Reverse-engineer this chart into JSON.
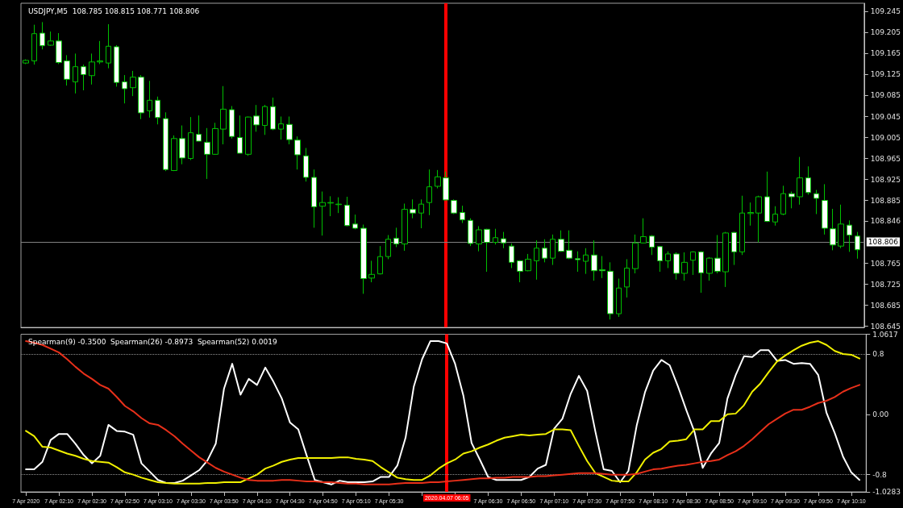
{
  "chart_data": [
    {
      "type": "candlestick",
      "title": "USDJPY,M5  108.785 108.815 108.771 108.806",
      "color": "#00c000",
      "x": [
        "2020-04-07T01:50",
        "2020-04-07T01:55",
        "2020-04-07T02:00",
        "2020-04-07T02:05",
        "2020-04-07T02:10",
        "2020-04-07T02:15",
        "2020-04-07T02:20",
        "2020-04-07T02:25",
        "2020-04-07T02:30",
        "2020-04-07T02:35",
        "2020-04-07T02:40",
        "2020-04-07T02:45",
        "2020-04-07T02:50",
        "2020-04-07T02:55",
        "2020-04-07T03:00",
        "2020-04-07T03:05",
        "2020-04-07T03:10",
        "2020-04-07T03:15",
        "2020-04-07T03:20",
        "2020-04-07T03:25",
        "2020-04-07T03:30",
        "2020-04-07T03:35",
        "2020-04-07T03:40",
        "2020-04-07T03:45",
        "2020-04-07T03:50",
        "2020-04-07T03:55",
        "2020-04-07T04:00",
        "2020-04-07T04:05",
        "2020-04-07T04:10",
        "2020-04-07T04:15",
        "2020-04-07T04:20",
        "2020-04-07T04:25",
        "2020-04-07T04:30",
        "2020-04-07T04:35",
        "2020-04-07T04:40",
        "2020-04-07T04:45",
        "2020-04-07T04:50",
        "2020-04-07T04:55",
        "2020-04-07T05:00",
        "2020-04-07T05:05",
        "2020-04-07T05:10",
        "2020-04-07T05:15",
        "2020-04-07T05:20",
        "2020-04-07T05:25",
        "2020-04-07T05:30",
        "2020-04-07T05:35",
        "2020-04-07T05:40",
        "2020-04-07T05:45",
        "2020-04-07T05:50",
        "2020-04-07T05:55",
        "2020-04-07T06:00",
        "2020-04-07T06:05",
        "2020-04-07T06:10",
        "2020-04-07T06:15",
        "2020-04-07T06:20",
        "2020-04-07T06:25",
        "2020-04-07T06:30",
        "2020-04-07T06:35",
        "2020-04-07T06:40",
        "2020-04-07T06:45",
        "2020-04-07T06:50",
        "2020-04-07T06:55",
        "2020-04-07T07:00",
        "2020-04-07T07:05",
        "2020-04-07T07:10",
        "2020-04-07T07:15",
        "2020-04-07T07:20",
        "2020-04-07T07:25",
        "2020-04-07T07:30",
        "2020-04-07T07:35",
        "2020-04-07T07:40",
        "2020-04-07T07:45",
        "2020-04-07T07:50",
        "2020-04-07T07:55",
        "2020-04-07T08:00",
        "2020-04-07T08:05",
        "2020-04-07T08:10",
        "2020-04-07T08:15",
        "2020-04-07T08:20",
        "2020-04-07T08:25",
        "2020-04-07T08:30",
        "2020-04-07T08:35",
        "2020-04-07T08:40",
        "2020-04-07T08:45",
        "2020-04-07T08:50",
        "2020-04-07T08:55",
        "2020-04-07T09:00",
        "2020-04-07T09:05",
        "2020-04-07T09:10",
        "2020-04-07T09:15",
        "2020-04-07T09:20",
        "2020-04-07T09:25",
        "2020-04-07T09:30",
        "2020-04-07T09:35",
        "2020-04-07T09:40",
        "2020-04-07T09:45",
        "2020-04-07T09:50",
        "2020-04-07T09:55",
        "2020-04-07T10:00",
        "2020-04-07T10:05",
        "2020-04-07T10:10",
        "2020-04-07T10:15"
      ],
      "ohlc": [
        [
          109.147,
          109.154,
          109.145,
          109.152
        ],
        [
          109.151,
          109.22,
          109.144,
          109.203
        ],
        [
          109.204,
          109.225,
          109.173,
          109.18
        ],
        [
          109.181,
          109.207,
          109.18,
          109.189
        ],
        [
          109.189,
          109.204,
          109.145,
          109.148
        ],
        [
          109.151,
          109.162,
          109.104,
          109.116
        ],
        [
          109.111,
          109.165,
          109.089,
          109.14
        ],
        [
          109.14,
          109.144,
          109.095,
          109.125
        ],
        [
          109.123,
          109.165,
          109.106,
          109.149
        ],
        [
          109.149,
          109.189,
          109.145,
          109.151
        ],
        [
          109.147,
          109.221,
          109.137,
          109.179
        ],
        [
          109.178,
          109.181,
          109.102,
          109.11
        ],
        [
          109.111,
          109.124,
          109.07,
          109.098
        ],
        [
          109.1,
          109.132,
          109.084,
          109.12
        ],
        [
          109.12,
          109.124,
          109.04,
          109.052
        ],
        [
          109.056,
          109.113,
          109.043,
          109.076
        ],
        [
          109.076,
          109.083,
          109.03,
          109.043
        ],
        [
          109.041,
          109.053,
          108.941,
          108.944
        ],
        [
          108.942,
          109.009,
          108.941,
          109.003
        ],
        [
          109.003,
          109.028,
          108.954,
          108.966
        ],
        [
          108.965,
          109.044,
          108.962,
          109.014
        ],
        [
          109.011,
          109.047,
          108.998,
          108.998
        ],
        [
          108.996,
          109.023,
          108.926,
          108.973
        ],
        [
          108.973,
          109.033,
          108.972,
          109.022
        ],
        [
          109.021,
          109.103,
          108.992,
          109.059
        ],
        [
          109.058,
          109.065,
          109.003,
          109.007
        ],
        [
          109.005,
          109.047,
          108.975,
          108.975
        ],
        [
          108.973,
          109.045,
          108.97,
          109.044
        ],
        [
          109.046,
          109.067,
          109.016,
          109.029
        ],
        [
          109.028,
          109.067,
          109.01,
          109.064
        ],
        [
          109.064,
          109.081,
          109.019,
          109.021
        ],
        [
          109.021,
          109.045,
          109.001,
          109.031
        ],
        [
          109.03,
          109.045,
          108.992,
          109.001
        ],
        [
          109.0,
          109.007,
          108.944,
          108.972
        ],
        [
          108.97,
          108.985,
          108.921,
          108.929
        ],
        [
          108.929,
          108.944,
          108.833,
          108.873
        ],
        [
          108.874,
          108.902,
          108.818,
          108.881
        ],
        [
          108.88,
          108.893,
          108.855,
          108.881
        ],
        [
          108.877,
          108.891,
          108.861,
          108.878
        ],
        [
          108.876,
          108.892,
          108.836,
          108.837
        ],
        [
          108.84,
          108.858,
          108.83,
          108.832
        ],
        [
          108.832,
          108.839,
          108.707,
          108.736
        ],
        [
          108.737,
          108.77,
          108.729,
          108.744
        ],
        [
          108.745,
          108.798,
          108.744,
          108.778
        ],
        [
          108.778,
          108.819,
          108.773,
          108.811
        ],
        [
          108.813,
          108.833,
          108.796,
          108.802
        ],
        [
          108.802,
          108.879,
          108.789,
          108.868
        ],
        [
          108.868,
          108.887,
          108.851,
          108.861
        ],
        [
          108.861,
          108.887,
          108.832,
          108.878
        ],
        [
          108.881,
          108.944,
          108.857,
          108.911
        ],
        [
          108.912,
          108.943,
          108.908,
          108.93
        ],
        [
          108.928,
          108.94,
          108.885,
          108.886
        ],
        [
          108.885,
          108.887,
          108.859,
          108.861
        ],
        [
          108.862,
          108.875,
          108.842,
          108.848
        ],
        [
          108.847,
          108.851,
          108.798,
          108.803
        ],
        [
          108.802,
          108.836,
          108.788,
          108.829
        ],
        [
          108.83,
          108.831,
          108.749,
          108.805
        ],
        [
          108.805,
          108.831,
          108.801,
          108.814
        ],
        [
          108.812,
          108.825,
          108.794,
          108.804
        ],
        [
          108.798,
          108.803,
          108.756,
          108.767
        ],
        [
          108.77,
          108.771,
          108.729,
          108.75
        ],
        [
          108.751,
          108.783,
          108.75,
          108.773
        ],
        [
          108.77,
          108.809,
          108.734,
          108.794
        ],
        [
          108.794,
          108.811,
          108.767,
          108.775
        ],
        [
          108.775,
          108.82,
          108.762,
          108.811
        ],
        [
          108.811,
          108.828,
          108.787,
          108.788
        ],
        [
          108.79,
          108.828,
          108.773,
          108.775
        ],
        [
          108.774,
          108.788,
          108.749,
          108.772
        ],
        [
          108.769,
          108.794,
          108.745,
          108.781
        ],
        [
          108.781,
          108.809,
          108.732,
          108.751
        ],
        [
          108.753,
          108.779,
          108.737,
          108.751
        ],
        [
          108.75,
          108.767,
          108.658,
          108.669
        ],
        [
          108.669,
          108.736,
          108.663,
          108.718
        ],
        [
          108.72,
          108.773,
          108.7,
          108.756
        ],
        [
          108.755,
          108.82,
          108.746,
          108.804
        ],
        [
          108.804,
          108.851,
          108.803,
          108.816
        ],
        [
          108.817,
          108.819,
          108.781,
          108.796
        ],
        [
          108.797,
          108.798,
          108.749,
          108.77
        ],
        [
          108.77,
          108.788,
          108.756,
          108.783
        ],
        [
          108.783,
          108.786,
          108.734,
          108.746
        ],
        [
          108.746,
          108.786,
          108.732,
          108.767
        ],
        [
          108.771,
          108.788,
          108.743,
          108.787
        ],
        [
          108.787,
          108.788,
          108.709,
          108.747
        ],
        [
          108.746,
          108.777,
          108.732,
          108.775
        ],
        [
          108.775,
          108.819,
          108.746,
          108.75
        ],
        [
          108.749,
          108.825,
          108.72,
          108.823
        ],
        [
          108.824,
          108.825,
          108.762,
          108.787
        ],
        [
          108.787,
          108.894,
          108.781,
          108.861
        ],
        [
          108.86,
          108.881,
          108.837,
          108.862
        ],
        [
          108.861,
          108.894,
          108.805,
          108.892
        ],
        [
          108.892,
          108.94,
          108.844,
          108.845
        ],
        [
          108.844,
          108.874,
          108.837,
          108.859
        ],
        [
          108.859,
          108.913,
          108.857,
          108.898
        ],
        [
          108.898,
          108.902,
          108.87,
          108.892
        ],
        [
          108.892,
          108.968,
          108.877,
          108.928
        ],
        [
          108.928,
          108.95,
          108.896,
          108.9
        ],
        [
          108.898,
          108.905,
          108.859,
          108.889
        ],
        [
          108.885,
          108.916,
          108.82,
          108.832
        ],
        [
          108.831,
          108.869,
          108.79,
          108.8
        ],
        [
          108.798,
          108.877,
          108.794,
          108.84
        ],
        [
          108.838,
          108.847,
          108.787,
          108.819
        ],
        [
          108.817,
          108.825,
          108.774,
          108.791
        ]
      ],
      "xlim": [
        "2020-04-07T01:47",
        "2020-04-07T10:19"
      ],
      "ylim": [
        108.643,
        109.261
      ],
      "yticks": [
        108.645,
        108.685,
        108.725,
        108.765,
        108.846,
        108.885,
        108.925,
        108.965,
        109.005,
        109.045,
        109.085,
        109.125,
        109.165,
        109.205,
        109.245
      ],
      "tick_labels": "y",
      "ref_lines": [
        {
          "axis": "x",
          "value": "2020-04-07T06:05",
          "color": "#ff0000"
        },
        {
          "axis": "y",
          "value": 108.806,
          "label": "108.806",
          "color": "#808080"
        }
      ]
    },
    {
      "type": "line",
      "title": "Spearman(9) -0.3500  Spearman(26) -0.8973  Spearman(52) 0.0019",
      "x": [
        "2020-04-07T01:50",
        "2020-04-07T01:55",
        "2020-04-07T02:00",
        "2020-04-07T02:05",
        "2020-04-07T02:10",
        "2020-04-07T02:15",
        "2020-04-07T02:20",
        "2020-04-07T02:25",
        "2020-04-07T02:30",
        "2020-04-07T02:35",
        "2020-04-07T02:40",
        "2020-04-07T02:45",
        "2020-04-07T02:50",
        "2020-04-07T02:55",
        "2020-04-07T03:00",
        "2020-04-07T03:05",
        "2020-04-07T03:10",
        "2020-04-07T03:15",
        "2020-04-07T03:20",
        "2020-04-07T03:25",
        "2020-04-07T03:30",
        "2020-04-07T03:35",
        "2020-04-07T03:40",
        "2020-04-07T03:45",
        "2020-04-07T03:50",
        "2020-04-07T03:55",
        "2020-04-07T04:00",
        "2020-04-07T04:05",
        "2020-04-07T04:10",
        "2020-04-07T04:15",
        "2020-04-07T04:20",
        "2020-04-07T04:25",
        "2020-04-07T04:30",
        "2020-04-07T04:35",
        "2020-04-07T04:40",
        "2020-04-07T04:45",
        "2020-04-07T04:50",
        "2020-04-07T04:55",
        "2020-04-07T05:00",
        "2020-04-07T05:05",
        "2020-04-07T05:10",
        "2020-04-07T05:15",
        "2020-04-07T05:20",
        "2020-04-07T05:25",
        "2020-04-07T05:30",
        "2020-04-07T05:35",
        "2020-04-07T05:40",
        "2020-04-07T05:45",
        "2020-04-07T05:50",
        "2020-04-07T05:55",
        "2020-04-07T06:00",
        "2020-04-07T06:05",
        "2020-04-07T06:10",
        "2020-04-07T06:15",
        "2020-04-07T06:20",
        "2020-04-07T06:25",
        "2020-04-07T06:30",
        "2020-04-07T06:35",
        "2020-04-07T06:40",
        "2020-04-07T06:45",
        "2020-04-07T06:50",
        "2020-04-07T06:55",
        "2020-04-07T07:00",
        "2020-04-07T07:05",
        "2020-04-07T07:10",
        "2020-04-07T07:15",
        "2020-04-07T07:20",
        "2020-04-07T07:25",
        "2020-04-07T07:30",
        "2020-04-07T07:35",
        "2020-04-07T07:40",
        "2020-04-07T07:45",
        "2020-04-07T07:50",
        "2020-04-07T07:55",
        "2020-04-07T08:00",
        "2020-04-07T08:05",
        "2020-04-07T08:10",
        "2020-04-07T08:15",
        "2020-04-07T08:20",
        "2020-04-07T08:25",
        "2020-04-07T08:30",
        "2020-04-07T08:35",
        "2020-04-07T08:40",
        "2020-04-07T08:45",
        "2020-04-07T08:50",
        "2020-04-07T08:55",
        "2020-04-07T09:00",
        "2020-04-07T09:05",
        "2020-04-07T09:10",
        "2020-04-07T09:15",
        "2020-04-07T09:20",
        "2020-04-07T09:25",
        "2020-04-07T09:30",
        "2020-04-07T09:35",
        "2020-04-07T09:40",
        "2020-04-07T09:45",
        "2020-04-07T09:50",
        "2020-04-07T09:55",
        "2020-04-07T10:00",
        "2020-04-07T10:05",
        "2020-04-07T10:10",
        "2020-04-07T10:15"
      ],
      "series": [
        {
          "color": "#ffffff",
          "values": [
            -0.73,
            -0.73,
            -0.63,
            -0.34,
            -0.26,
            -0.26,
            -0.39,
            -0.54,
            -0.65,
            -0.55,
            -0.14,
            -0.22,
            -0.23,
            -0.27,
            -0.65,
            -0.76,
            -0.87,
            -0.91,
            -0.91,
            -0.88,
            -0.81,
            -0.74,
            -0.61,
            -0.39,
            0.34,
            0.67,
            0.26,
            0.47,
            0.39,
            0.62,
            0.43,
            0.21,
            -0.11,
            -0.2,
            -0.54,
            -0.87,
            -0.9,
            -0.93,
            -0.88,
            -0.9,
            -0.9,
            -0.9,
            -0.89,
            -0.83,
            -0.83,
            -0.68,
            -0.31,
            0.37,
            0.73,
            0.97,
            0.97,
            0.94,
            0.67,
            0.25,
            -0.38,
            -0.6,
            -0.83,
            -0.87,
            -0.87,
            -0.87,
            -0.87,
            -0.83,
            -0.72,
            -0.67,
            -0.19,
            -0.06,
            0.27,
            0.51,
            0.31,
            -0.23,
            -0.73,
            -0.75,
            -0.9,
            -0.75,
            -0.15,
            0.29,
            0.58,
            0.72,
            0.65,
            0.37,
            0.06,
            -0.23,
            -0.71,
            -0.52,
            -0.38,
            0.21,
            0.52,
            0.77,
            0.76,
            0.85,
            0.85,
            0.71,
            0.72,
            0.67,
            0.68,
            0.67,
            0.52,
            0.02,
            -0.25,
            -0.56,
            -0.77,
            -0.87
          ]
        },
        {
          "color": "#f0f000",
          "values": [
            -0.22,
            -0.29,
            -0.43,
            -0.44,
            -0.48,
            -0.52,
            -0.55,
            -0.59,
            -0.62,
            -0.63,
            -0.64,
            -0.7,
            -0.77,
            -0.8,
            -0.84,
            -0.87,
            -0.9,
            -0.91,
            -0.92,
            -0.92,
            -0.92,
            -0.92,
            -0.91,
            -0.91,
            -0.9,
            -0.9,
            -0.9,
            -0.85,
            -0.8,
            -0.72,
            -0.68,
            -0.63,
            -0.6,
            -0.58,
            -0.58,
            -0.58,
            -0.58,
            -0.58,
            -0.57,
            -0.57,
            -0.59,
            -0.6,
            -0.62,
            -0.7,
            -0.77,
            -0.84,
            -0.86,
            -0.87,
            -0.87,
            -0.81,
            -0.72,
            -0.65,
            -0.6,
            -0.52,
            -0.49,
            -0.44,
            -0.4,
            -0.35,
            -0.31,
            -0.29,
            -0.27,
            -0.28,
            -0.27,
            -0.26,
            -0.2,
            -0.2,
            -0.21,
            -0.42,
            -0.62,
            -0.78,
            -0.83,
            -0.88,
            -0.89,
            -0.89,
            -0.77,
            -0.6,
            -0.51,
            -0.46,
            -0.36,
            -0.35,
            -0.33,
            -0.2,
            -0.2,
            -0.09,
            -0.09,
            0,
            0.01,
            0.12,
            0.3,
            0.41,
            0.56,
            0.7,
            0.78,
            0.85,
            0.91,
            0.95,
            0.97,
            0.92,
            0.84,
            0.8,
            0.79,
            0.74
          ]
        },
        {
          "color": "#e8301a",
          "values": [
            0.97,
            0.95,
            0.92,
            0.87,
            0.82,
            0.73,
            0.63,
            0.54,
            0.47,
            0.39,
            0.34,
            0.23,
            0.11,
            0.04,
            -0.05,
            -0.12,
            -0.14,
            -0.21,
            -0.29,
            -0.39,
            -0.48,
            -0.57,
            -0.64,
            -0.71,
            -0.76,
            -0.8,
            -0.84,
            -0.87,
            -0.88,
            -0.88,
            -0.88,
            -0.87,
            -0.87,
            -0.88,
            -0.89,
            -0.89,
            -0.9,
            -0.9,
            -0.91,
            -0.92,
            -0.92,
            -0.93,
            -0.93,
            -0.93,
            -0.93,
            -0.92,
            -0.91,
            -0.91,
            -0.91,
            -0.9,
            -0.9,
            -0.89,
            -0.88,
            -0.87,
            -0.86,
            -0.85,
            -0.85,
            -0.84,
            -0.84,
            -0.83,
            -0.83,
            -0.83,
            -0.82,
            -0.82,
            -0.81,
            -0.8,
            -0.79,
            -0.78,
            -0.78,
            -0.78,
            -0.79,
            -0.8,
            -0.8,
            -0.8,
            -0.79,
            -0.76,
            -0.73,
            -0.72,
            -0.7,
            -0.68,
            -0.67,
            -0.65,
            -0.63,
            -0.62,
            -0.6,
            -0.54,
            -0.49,
            -0.42,
            -0.33,
            -0.23,
            -0.13,
            -0.06,
            0.01,
            0.06,
            0.06,
            0.1,
            0.15,
            0.18,
            0.23,
            0.3,
            0.35,
            0.39
          ]
        }
      ],
      "xlim": [
        "2020-04-07T01:47",
        "2020-04-07T10:19"
      ],
      "xticks": [
        {
          "value": "2020-04-07T01:50",
          "label": "7 Apr 2020"
        },
        {
          "value": "2020-04-07T02:10",
          "label": "7 Apr 02:10"
        },
        {
          "value": "2020-04-07T02:30",
          "label": "7 Apr 02:30"
        },
        {
          "value": "2020-04-07T02:50",
          "label": "7 Apr 02:50"
        },
        {
          "value": "2020-04-07T03:10",
          "label": "7 Apr 03:10"
        },
        {
          "value": "2020-04-07T03:30",
          "label": "7 Apr 03:30"
        },
        {
          "value": "2020-04-07T03:50",
          "label": "7 Apr 03:50"
        },
        {
          "value": "2020-04-07T04:10",
          "label": "7 Apr 04:10"
        },
        {
          "value": "2020-04-07T04:30",
          "label": "7 Apr 04:30"
        },
        {
          "value": "2020-04-07T04:50",
          "label": "7 Apr 04:50"
        },
        {
          "value": "2020-04-07T05:10",
          "label": "7 Apr 05:10"
        },
        {
          "value": "2020-04-07T05:30",
          "label": "7 Apr 05:30"
        },
        {
          "value": "2020-04-07T05:50",
          "label": null
        },
        {
          "value": "2020-04-07T06:10",
          "label": null
        },
        {
          "value": "2020-04-07T06:30",
          "label": "7 Apr 06:30"
        },
        {
          "value": "2020-04-07T06:50",
          "label": "7 Apr 06:50"
        },
        {
          "value": "2020-04-07T07:10",
          "label": "7 Apr 07:10"
        },
        {
          "value": "2020-04-07T07:30",
          "label": "7 Apr 07:30"
        },
        {
          "value": "2020-04-07T07:50",
          "label": "7 Apr 07:50"
        },
        {
          "value": "2020-04-07T08:10",
          "label": "7 Apr 08:10"
        },
        {
          "value": "2020-04-07T08:30",
          "label": "7 Apr 08:30"
        },
        {
          "value": "2020-04-07T08:50",
          "label": "7 Apr 08:50"
        },
        {
          "value": "2020-04-07T09:10",
          "label": "7 Apr 09:10"
        },
        {
          "value": "2020-04-07T09:30",
          "label": "7 Apr 09:30"
        },
        {
          "value": "2020-04-07T09:50",
          "label": "7 Apr 09:50"
        },
        {
          "value": "2020-04-07T10:10",
          "label": "7 Apr 10:10"
        }
      ],
      "ylim": [
        -1.0283,
        1.0617
      ],
      "yticks": [
        -1.0283,
        -0.8,
        {
          "value": 0,
          "label": "0.00"
        },
        0.8,
        1.0617
      ],
      "ref_lines": [
        {
          "axis": "x",
          "value": "2020-04-07T06:05",
          "label": "2020.04.07 06:05",
          "color": "#ff0000"
        },
        {
          "axis": "y",
          "value": 0.8,
          "color": "#909090",
          "line_style": "dotted"
        },
        {
          "axis": "y",
          "value": -0.8,
          "color": "#909090",
          "line_style": "dotted"
        }
      ]
    }
  ]
}
